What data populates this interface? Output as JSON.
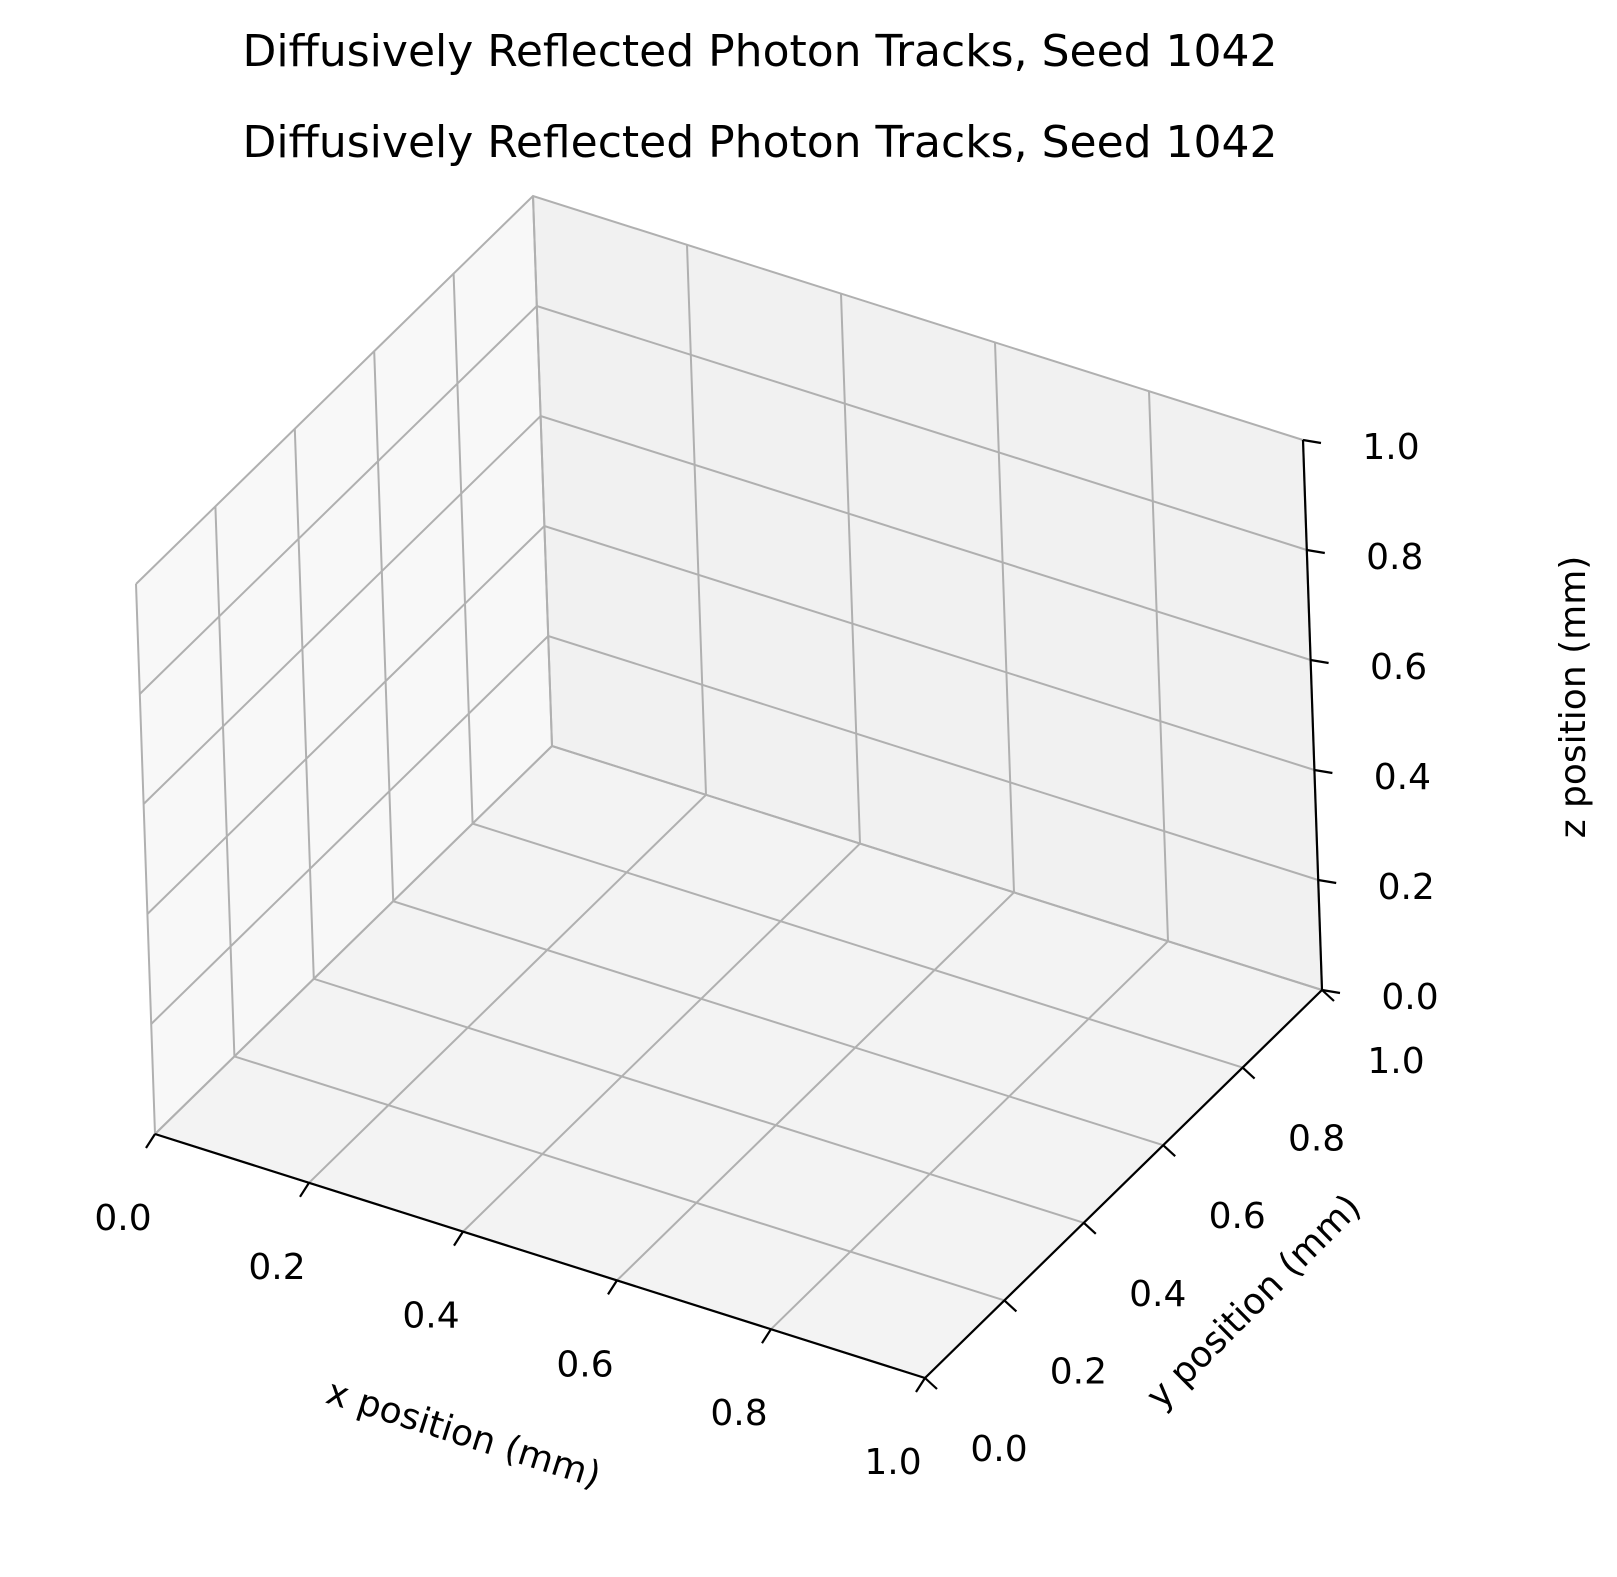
{
  "chart_data": {
    "type": "line",
    "title": "Diffusively Reflected Photon Tracks, Seed 1042",
    "subtitle": "Diffusively Reflected Photon Tracks, Seed 1042",
    "xlabel": "x position (mm)",
    "ylabel": "y position (mm)",
    "zlabel": "z position (mm)",
    "xlim": [
      0.0,
      1.0
    ],
    "ylim": [
      0.0,
      1.0
    ],
    "zlim": [
      0.0,
      1.0
    ],
    "xticks": [
      "0.0",
      "0.2",
      "0.4",
      "0.6",
      "0.8",
      "1.0"
    ],
    "yticks": [
      "0.0",
      "0.2",
      "0.4",
      "0.6",
      "0.8",
      "1.0"
    ],
    "zticks": [
      "0.0",
      "0.2",
      "0.4",
      "0.6",
      "0.8",
      "1.0"
    ],
    "projection": "3d",
    "grid": true,
    "series": [],
    "colors": {
      "pane_floor": "#f3f3f3",
      "pane_left": "#f8f8f8",
      "pane_back": "#f1f1f1",
      "grid": "#b0b0b0",
      "axis": "#000000"
    }
  }
}
